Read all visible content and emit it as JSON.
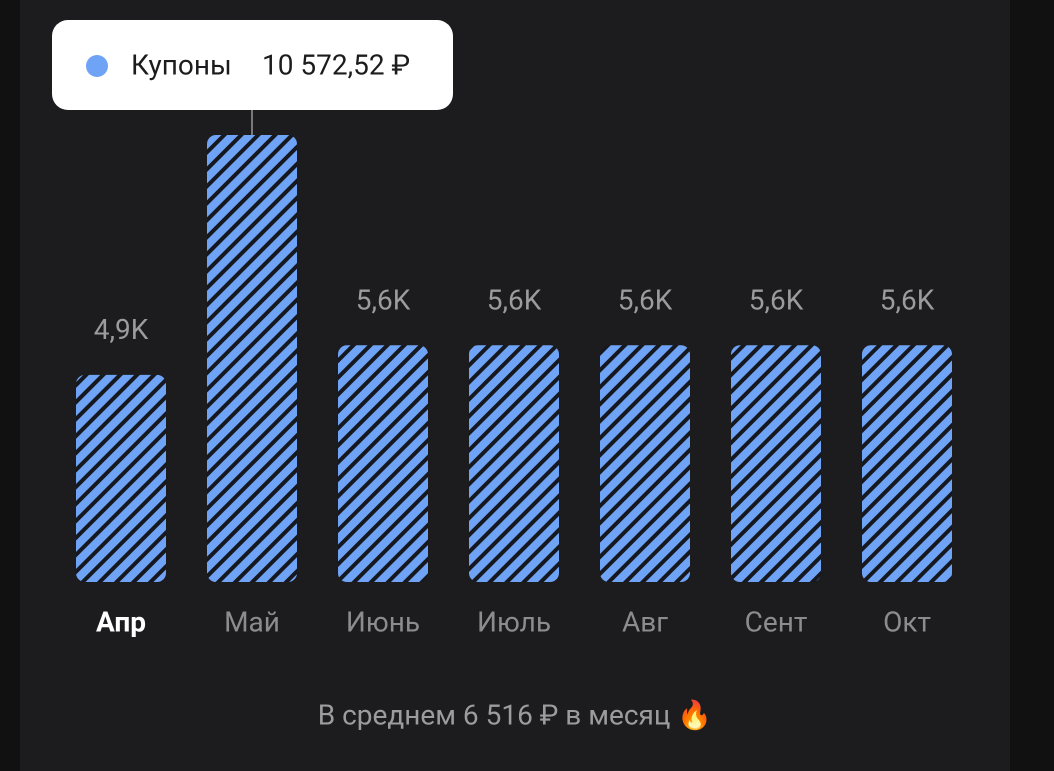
{
  "chart_data": {
    "type": "bar",
    "categories": [
      "Апр",
      "Май",
      "Июнь",
      "Июль",
      "Авг",
      "Сент",
      "Окт"
    ],
    "series": [
      {
        "name": "Купоны",
        "color": "#6fa3f5",
        "values": [
          4900,
          10572.52,
          5600,
          5600,
          5600,
          5600,
          5600
        ],
        "value_labels": [
          "4,9K",
          "10 572,52 ₽",
          "5,6K",
          "5,6K",
          "5,6K",
          "5,6K",
          "5,6K"
        ]
      }
    ],
    "tooltip_index": 1,
    "footer": "В среднем 6 516 ₽ в месяц 🔥"
  }
}
